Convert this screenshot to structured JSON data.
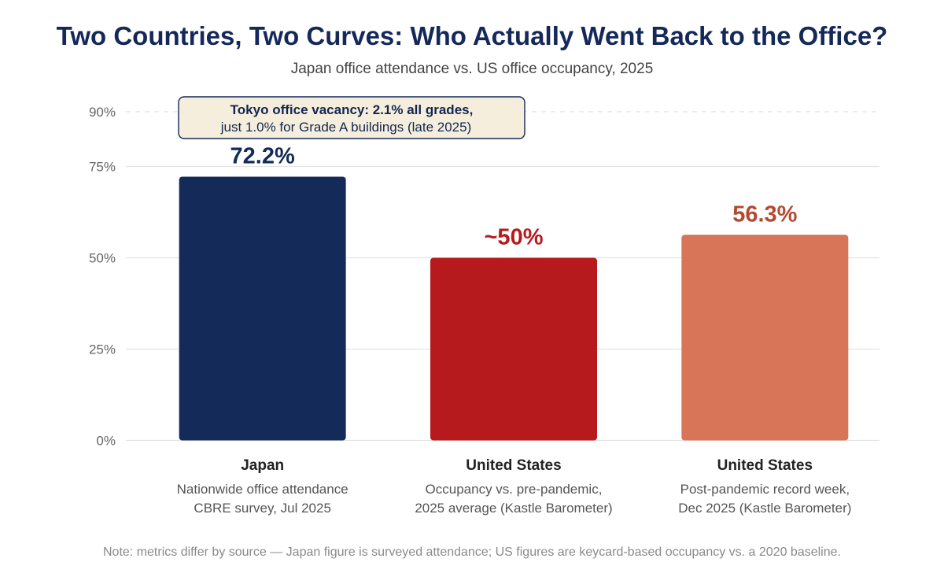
{
  "colors": {
    "title": "#14285a",
    "subtitle": "#444444",
    "grid": "#e3e3e3",
    "ann_bg": "#f5eedd",
    "ann_border": "#14285a"
  },
  "chart_data": {
    "type": "bar",
    "title": "Two Countries, Two Curves: Who Actually Went Back to the Office?",
    "subtitle": "Japan office attendance vs. US office occupancy, 2025",
    "xlabel": "",
    "ylabel": "",
    "ylim": [
      0,
      90
    ],
    "yticks": [
      0,
      25,
      50,
      75,
      90
    ],
    "ytick_labels": [
      "0%",
      "25%",
      "50%",
      "75%",
      "90%"
    ],
    "grid": true,
    "categories": [
      {
        "name": "Japan",
        "desc1": "Nationwide office attendance",
        "desc2": "CBRE survey, Jul 2025"
      },
      {
        "name": "United States",
        "desc1": "Occupancy vs. pre-pandemic,",
        "desc2": "2025 average (Kastle Barometer)"
      },
      {
        "name": "United States",
        "desc1": "Post-pandemic record week,",
        "desc2": "Dec 2025 (Kastle Barometer)"
      }
    ],
    "values": [
      72.2,
      50,
      56.3
    ],
    "value_labels": [
      "72.2%",
      "~50%",
      "56.3%"
    ],
    "bar_colors": [
      "#142b59",
      "#b71a1c",
      "#d87457"
    ],
    "label_colors": [
      "#142b59",
      "#b71a1c",
      "#b3492e"
    ],
    "annotation": {
      "line1": "Tokyo office vacancy: 2.1% all grades,",
      "line2": "just 1.0% for Grade A buildings (late 2025)"
    },
    "note": "Note: metrics differ by source — Japan figure is surveyed attendance; US figures are keycard-based occupancy vs. a 2020 baseline."
  }
}
